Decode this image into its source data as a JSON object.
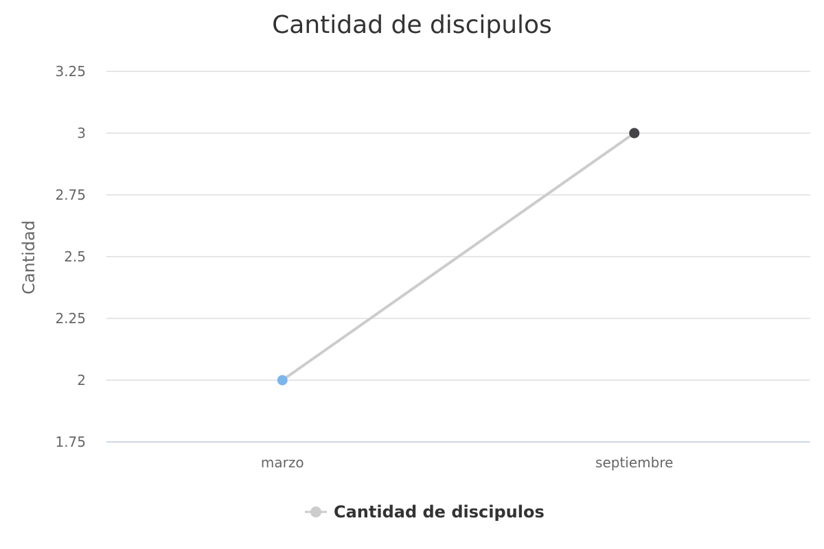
{
  "chart_data": {
    "type": "line",
    "title": "Cantidad de discipulos",
    "xlabel": "",
    "ylabel": "Cantidad",
    "categories": [
      "marzo",
      "septiembre"
    ],
    "series": [
      {
        "name": "Cantidad de discipulos",
        "values": [
          2,
          3
        ],
        "line_color": "#cccccc",
        "point_colors": [
          "#7cb5ec",
          "#434348"
        ]
      }
    ],
    "ylim": [
      1.75,
      3.25
    ],
    "yticks": [
      "1.75",
      "2",
      "2.25",
      "2.5",
      "2.75",
      "3",
      "3.25"
    ],
    "grid": true,
    "legend": "bottom-center"
  }
}
